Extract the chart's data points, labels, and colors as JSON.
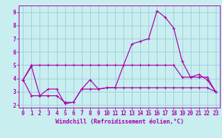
{
  "xlabel": "Windchill (Refroidissement éolien,°C)",
  "bg_color": "#c8eef0",
  "grid_color": "#a0c8d8",
  "line_color": "#aa00aa",
  "x_values": [
    0,
    1,
    2,
    3,
    4,
    5,
    6,
    7,
    8,
    9,
    10,
    11,
    12,
    13,
    14,
    15,
    16,
    17,
    18,
    19,
    20,
    21,
    22,
    23
  ],
  "line_main": [
    3.9,
    4.9,
    2.7,
    3.2,
    3.2,
    2.1,
    2.2,
    3.2,
    3.9,
    3.2,
    3.3,
    3.3,
    5.0,
    6.6,
    6.8,
    7.0,
    9.1,
    8.6,
    7.8,
    5.3,
    4.1,
    4.3,
    3.9,
    3.0
  ],
  "line_upper": [
    3.9,
    5.0,
    5.0,
    5.0,
    5.0,
    5.0,
    5.0,
    5.0,
    5.0,
    5.0,
    5.0,
    5.0,
    5.0,
    5.0,
    5.0,
    5.0,
    5.0,
    5.0,
    5.0,
    4.1,
    4.1,
    4.1,
    4.1,
    3.0
  ],
  "line_lower": [
    3.9,
    2.7,
    2.7,
    2.7,
    2.7,
    2.2,
    2.2,
    3.2,
    3.2,
    3.2,
    3.3,
    3.3,
    3.3,
    3.3,
    3.3,
    3.3,
    3.3,
    3.3,
    3.3,
    3.3,
    3.3,
    3.3,
    3.3,
    3.0
  ],
  "ylim": [
    1.8,
    9.5
  ],
  "xlim": [
    -0.5,
    23.5
  ],
  "yticks": [
    2,
    3,
    4,
    5,
    6,
    7,
    8,
    9
  ],
  "xticks": [
    0,
    1,
    2,
    3,
    4,
    5,
    6,
    7,
    8,
    9,
    10,
    11,
    12,
    13,
    14,
    15,
    16,
    17,
    18,
    19,
    20,
    21,
    22,
    23
  ],
  "ylabel_fontsize": 6.0,
  "xlabel_fontsize": 6.0,
  "tick_fontsize": 5.5,
  "lw": 0.9,
  "marker_size": 3.0
}
